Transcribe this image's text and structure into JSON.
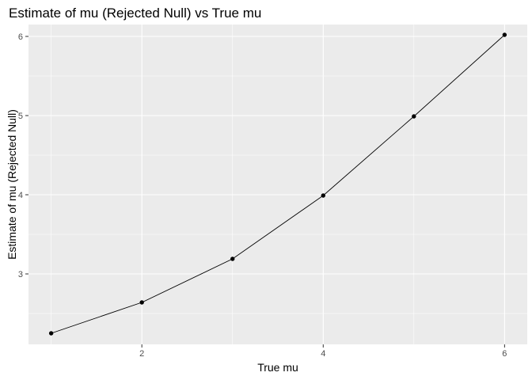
{
  "chart_data": {
    "type": "line",
    "title": "Estimate of mu (Rejected Null) vs True mu",
    "xlabel": "True mu",
    "ylabel": "Estimate of mu (Rejected Null)",
    "x": [
      1,
      2,
      3,
      4,
      5,
      6
    ],
    "series": [
      {
        "values": [
          2.25,
          2.64,
          3.19,
          3.99,
          4.99,
          6.02
        ]
      }
    ],
    "xlim": [
      0.75,
      6.25
    ],
    "ylim": [
      2.11,
      6.15
    ],
    "x_ticks": [
      2,
      4,
      6
    ],
    "x_tick_labels": [
      "2",
      "4",
      "6"
    ],
    "y_ticks": [
      3,
      4,
      5,
      6
    ],
    "y_tick_labels": [
      "3",
      "4",
      "5",
      "6"
    ],
    "grid": true,
    "panel_background": "#ebebeb",
    "grid_color": "#ffffff",
    "line_color": "#000000",
    "point_color": "#000000"
  }
}
